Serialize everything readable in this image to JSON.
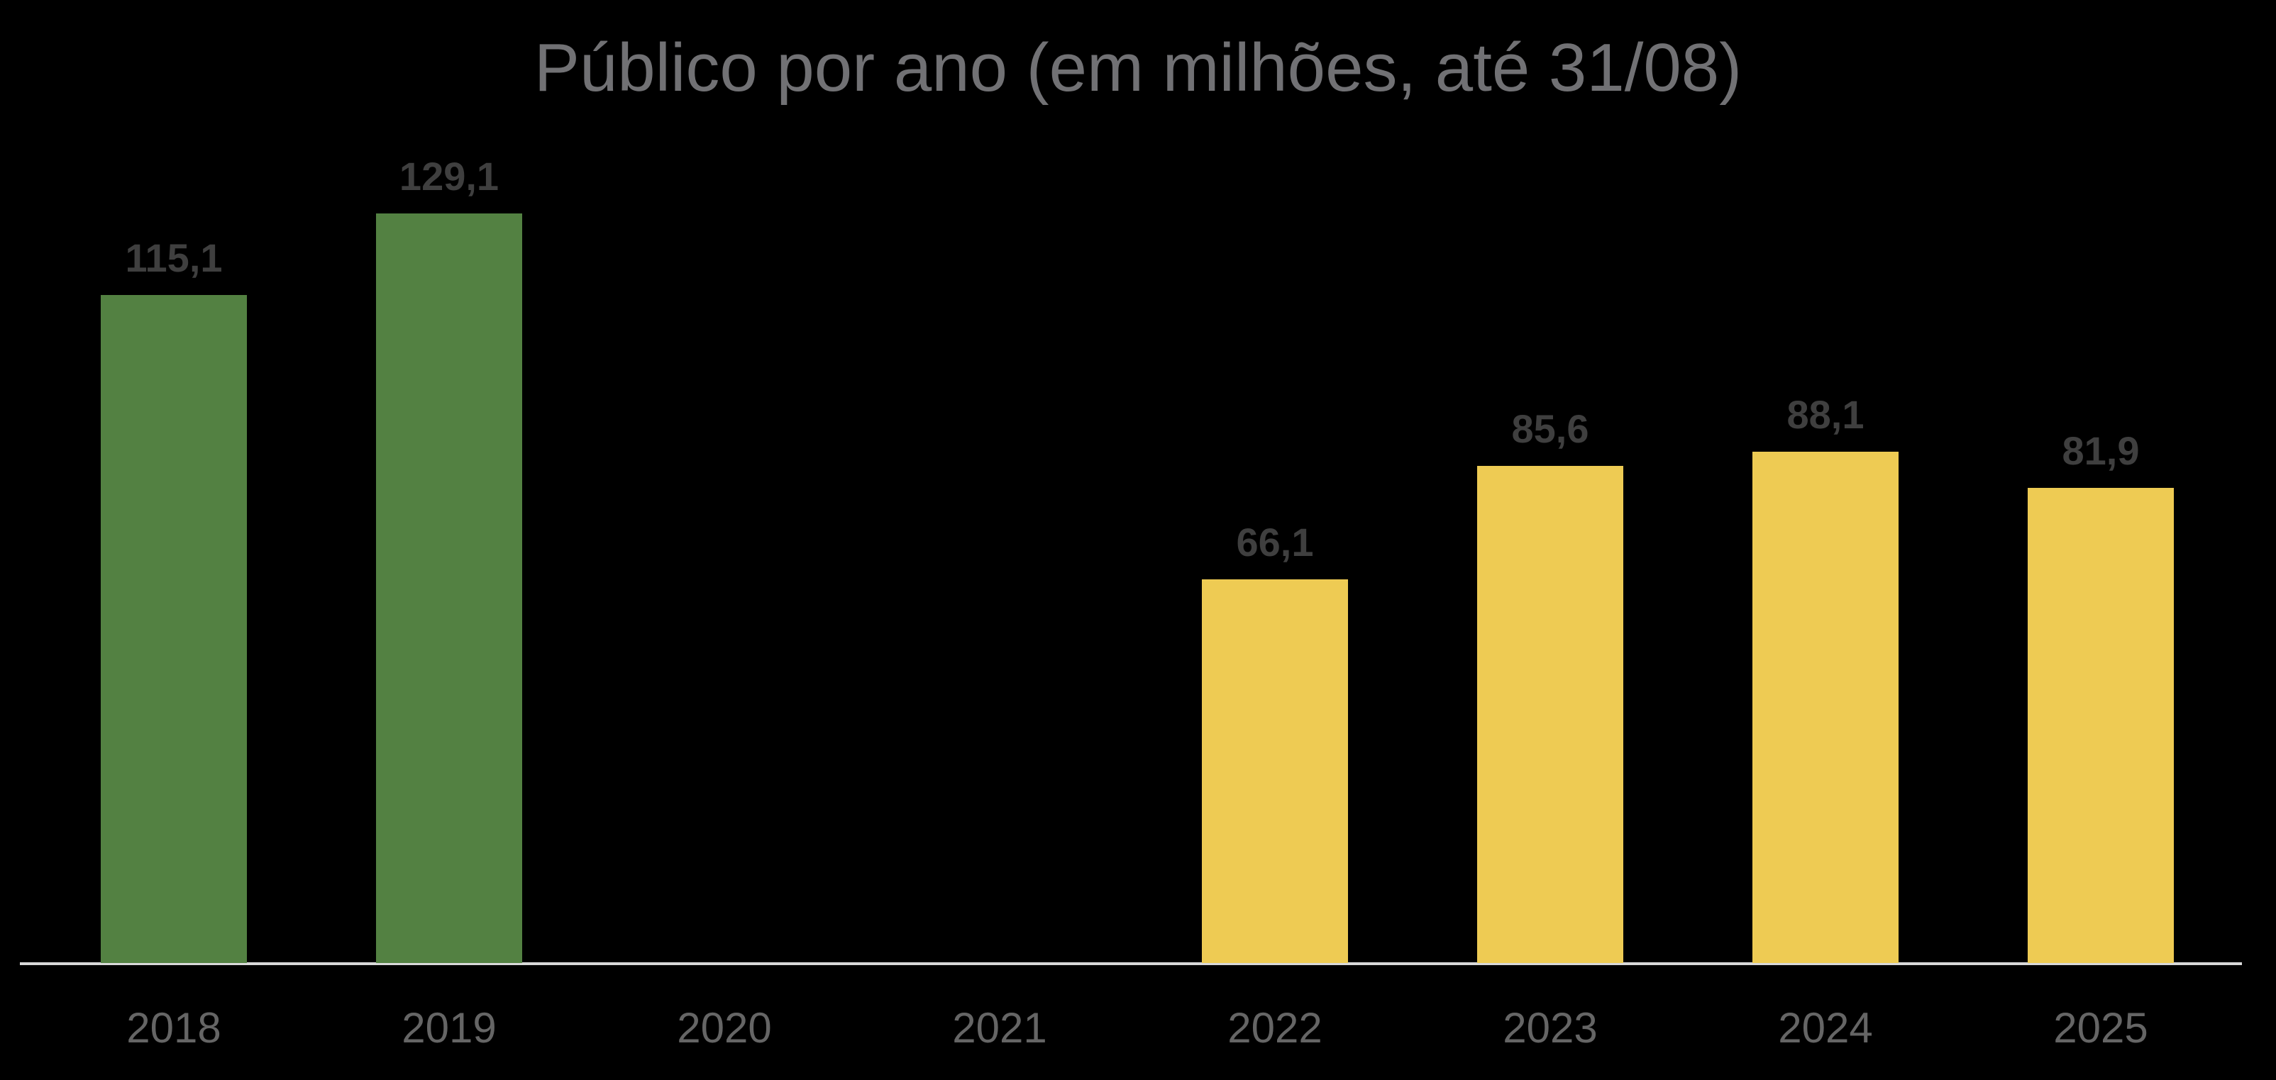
{
  "title": "Público por ano (em milhões, até 31/08)",
  "colors": {
    "background": "#000000",
    "title_text": "#717174",
    "data_label_text": "#3f3f3f",
    "axis_label_text": "#656565",
    "axis_line": "#d9d9d9",
    "bar_green": "#538142",
    "bar_yellow": "#eecb53"
  },
  "chart_data": {
    "type": "bar",
    "title": "Público por ano (em milhões, até 31/08)",
    "xlabel": "",
    "ylabel": "",
    "ylim": [
      0,
      135
    ],
    "grid": false,
    "legend": "none",
    "value_axis_visible": false,
    "categories": [
      "2018",
      "2019",
      "2020",
      "2021",
      "2022",
      "2023",
      "2024",
      "2025"
    ],
    "values": [
      115.1,
      129.1,
      null,
      null,
      66.1,
      85.6,
      88.1,
      81.9
    ],
    "data_labels": [
      "115,1",
      "129,1",
      "",
      "",
      "66,1",
      "85,6",
      "88,1",
      "81,9"
    ],
    "bar_colors": [
      "#538142",
      "#538142",
      null,
      null,
      "#eecb53",
      "#eecb53",
      "#eecb53",
      "#eecb53"
    ]
  }
}
